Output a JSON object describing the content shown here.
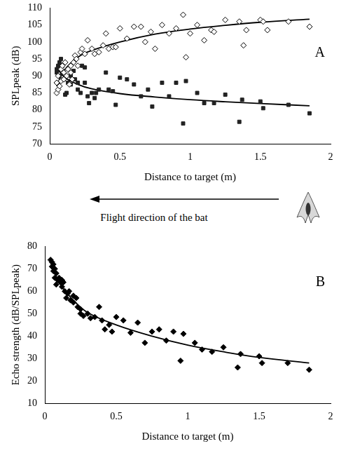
{
  "chart_data": [
    {
      "type": "scatter",
      "label": "A",
      "x_label": "Distance to target (m)",
      "y_label": "SPLpeak (dB)",
      "annotation": "Flight direction of the bat",
      "xlim": [
        0,
        2
      ],
      "xticks": [
        0,
        0.5,
        1,
        1.5,
        2
      ],
      "ylim": [
        70,
        110
      ],
      "yticks": [
        70,
        75,
        80,
        85,
        90,
        95,
        100,
        105,
        110
      ],
      "grid": false,
      "series": [
        {
          "type": "scatter",
          "marker": "open_diamond",
          "color": "#000000",
          "x": [
            0.05,
            0.06,
            0.07,
            0.05,
            0.08,
            0.06,
            0.1,
            0.12,
            0.1,
            0.13,
            0.15,
            0.08,
            0.15,
            0.17,
            0.2,
            0.18,
            0.22,
            0.25,
            0.23,
            0.27,
            0.3,
            0.32,
            0.35,
            0.38,
            0.4,
            0.42,
            0.45,
            0.47,
            0.5,
            0.55,
            0.6,
            0.65,
            0.68,
            0.72,
            0.75,
            0.8,
            0.85,
            0.9,
            0.95,
            0.97,
            1.0,
            1.05,
            1.1,
            1.15,
            1.17,
            1.25,
            1.35,
            1.38,
            1.4,
            1.5,
            1.52,
            1.55,
            1.7,
            1.85,
            0.09,
            0.11,
            0.14,
            0.16,
            0.19
          ],
          "values": [
            85,
            86,
            87,
            88,
            88.5,
            90,
            89,
            90,
            91,
            92,
            91,
            92,
            93,
            94,
            93,
            96,
            97,
            96.5,
            98,
            100.5,
            98,
            96.5,
            97,
            99,
            102.5,
            98,
            98.5,
            98.5,
            104,
            101,
            104.5,
            104.5,
            100,
            103,
            98,
            105,
            102.5,
            104,
            108,
            95.5,
            102.5,
            105,
            100.5,
            103.5,
            103,
            106.5,
            106,
            99,
            103.5,
            106.5,
            106,
            103.5,
            106,
            104.5,
            93,
            94,
            87.5,
            89,
            95
          ]
        },
        {
          "type": "scatter",
          "marker": "square",
          "color": "#222222",
          "x": [
            0.05,
            0.06,
            0.05,
            0.07,
            0.08,
            0.06,
            0.09,
            0.1,
            0.07,
            0.1,
            0.12,
            0.11,
            0.13,
            0.15,
            0.15,
            0.17,
            0.18,
            0.2,
            0.2,
            0.22,
            0.23,
            0.25,
            0.25,
            0.27,
            0.28,
            0.3,
            0.32,
            0.33,
            0.35,
            0.4,
            0.42,
            0.45,
            0.47,
            0.5,
            0.55,
            0.6,
            0.65,
            0.7,
            0.73,
            0.8,
            0.85,
            0.9,
            0.95,
            0.97,
            1.05,
            1.1,
            1.17,
            1.25,
            1.35,
            1.37,
            1.5,
            1.52,
            1.7,
            1.85
          ],
          "values": [
            91,
            93,
            92,
            94,
            95,
            92.5,
            93,
            91,
            90,
            89,
            85,
            84.5,
            88,
            87.5,
            90,
            91.5,
            89,
            88,
            86,
            85,
            93,
            92.5,
            88,
            84,
            82,
            85,
            83.5,
            85,
            86,
            91,
            86,
            85.5,
            81.5,
            89.5,
            89,
            87.5,
            84,
            86,
            81,
            88,
            84,
            88,
            76,
            88.5,
            85,
            82,
            82,
            84.5,
            76.5,
            83,
            82.5,
            80.5,
            81.5,
            79
          ]
        },
        {
          "type": "line",
          "marker": "none",
          "line_style": "solid",
          "color": "#000000",
          "x": [
            0.05,
            0.1,
            0.2,
            0.3,
            0.5,
            0.75,
            1,
            1.25,
            1.5,
            1.85
          ],
          "values": [
            87,
            91.5,
            95.5,
            97.5,
            100,
            102.3,
            103.8,
            104.9,
            105.8,
            106.7
          ]
        },
        {
          "type": "line",
          "marker": "none",
          "line_style": "solid",
          "color": "#000000",
          "x": [
            0.05,
            0.1,
            0.2,
            0.3,
            0.5,
            0.75,
            1,
            1.25,
            1.5,
            1.85
          ],
          "values": [
            92.5,
            89.8,
            87.5,
            86.2,
            84.8,
            83.8,
            83,
            82.4,
            81.9,
            81.2
          ]
        }
      ]
    },
    {
      "type": "scatter",
      "label": "B",
      "x_label": "Distance to target (m)",
      "y_label": "Echo strength (dB/SPLpeak)",
      "xlim": [
        0,
        2
      ],
      "xticks": [
        0,
        0.5,
        1,
        1.5,
        2
      ],
      "ylim": [
        10,
        80
      ],
      "yticks": [
        10,
        20,
        30,
        40,
        50,
        60,
        70,
        80
      ],
      "grid": false,
      "series": [
        {
          "type": "scatter",
          "marker": "diamond",
          "color": "#000000",
          "x": [
            0.04,
            0.05,
            0.06,
            0.05,
            0.07,
            0.06,
            0.08,
            0.07,
            0.09,
            0.1,
            0.08,
            0.11,
            0.12,
            0.13,
            0.12,
            0.14,
            0.15,
            0.16,
            0.17,
            0.18,
            0.2,
            0.2,
            0.22,
            0.23,
            0.25,
            0.25,
            0.27,
            0.3,
            0.32,
            0.35,
            0.38,
            0.4,
            0.42,
            0.45,
            0.47,
            0.5,
            0.55,
            0.6,
            0.65,
            0.7,
            0.75,
            0.8,
            0.85,
            0.9,
            0.95,
            0.97,
            1.05,
            1.1,
            1.17,
            1.25,
            1.35,
            1.37,
            1.5,
            1.52,
            1.7,
            1.85
          ],
          "values": [
            74,
            73,
            72,
            71,
            70,
            69,
            68,
            66,
            65,
            66,
            63,
            64,
            65,
            64,
            62,
            60,
            57,
            59,
            60,
            56,
            58,
            55,
            57,
            53,
            52,
            50,
            49,
            50,
            48,
            48.5,
            53,
            47,
            43,
            45,
            42,
            48.5,
            47,
            41.5,
            46,
            37,
            42,
            43,
            38,
            42,
            29,
            41,
            37,
            34,
            33,
            35,
            26,
            32,
            31,
            28,
            28,
            25
          ]
        },
        {
          "type": "line",
          "marker": "none",
          "line_style": "solid",
          "color": "#000000",
          "x": [
            0.04,
            0.1,
            0.2,
            0.3,
            0.5,
            0.75,
            1,
            1.25,
            1.5,
            1.85
          ],
          "values": [
            74,
            64,
            56,
            50.5,
            45,
            40,
            36,
            33,
            30.5,
            28
          ]
        }
      ]
    }
  ]
}
